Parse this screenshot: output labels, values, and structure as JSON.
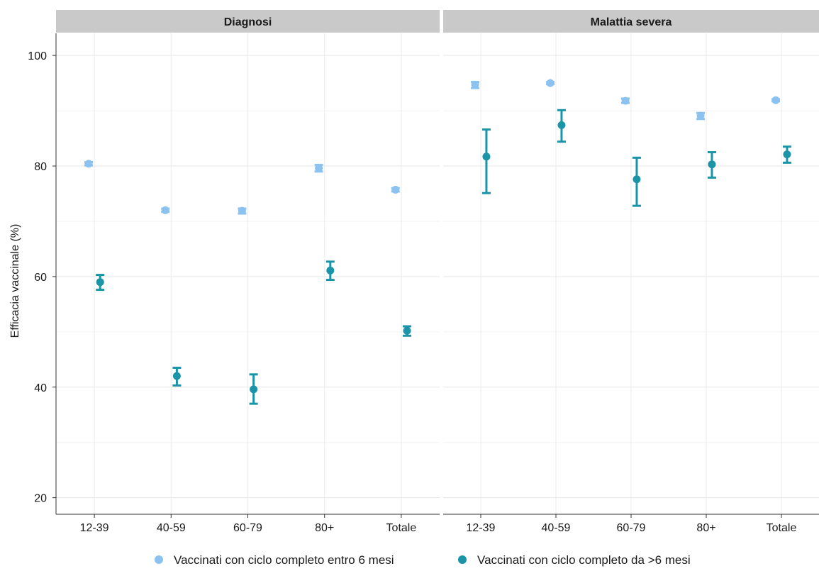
{
  "chart_data": {
    "type": "scatter",
    "subtype": "dot-with-errorbars",
    "ylabel": "Efficacia vaccinale (%)",
    "xlabel": "",
    "ylim": [
      17,
      104
    ],
    "yticks": [
      20,
      40,
      60,
      80,
      100
    ],
    "categories": [
      "12-39",
      "40-59",
      "60-79",
      "80+",
      "Totale"
    ],
    "grid": true,
    "legend_position": "bottom",
    "colors": {
      "recent": "#8cc2ef",
      "older": "#1b94a8"
    },
    "panels": [
      {
        "title": "Diagnosi",
        "series": [
          {
            "name": "Vaccinati con ciclo completo entro 6 mesi",
            "color": "#8cc2ef",
            "values": [
              80.4,
              72.0,
              71.9,
              79.6,
              75.7
            ],
            "lower": [
              80.1,
              71.7,
              71.4,
              79.0,
              75.4
            ],
            "upper": [
              80.7,
              72.3,
              72.3,
              80.2,
              76.0
            ]
          },
          {
            "name": "Vaccinati con ciclo completo da >6 mesi",
            "color": "#1b94a8",
            "values": [
              59.0,
              42.0,
              39.6,
              61.1,
              50.2
            ],
            "lower": [
              57.6,
              40.3,
              37.0,
              59.4,
              49.3
            ],
            "upper": [
              60.3,
              43.5,
              42.3,
              62.7,
              51.0
            ]
          }
        ]
      },
      {
        "title": "Malattia severa",
        "series": [
          {
            "name": "Vaccinati con ciclo completo entro 6 mesi",
            "color": "#8cc2ef",
            "values": [
              94.7,
              95.0,
              91.8,
              89.1,
              91.9
            ],
            "lower": [
              94.1,
              94.8,
              91.4,
              88.5,
              91.7
            ],
            "upper": [
              95.2,
              95.2,
              92.2,
              89.6,
              92.1
            ]
          },
          {
            "name": "Vaccinati con ciclo completo da >6 mesi",
            "color": "#1b94a8",
            "values": [
              81.7,
              87.4,
              77.6,
              80.3,
              82.1
            ],
            "lower": [
              75.1,
              84.4,
              72.8,
              77.9,
              80.6
            ],
            "upper": [
              86.6,
              90.1,
              81.5,
              82.5,
              83.5
            ]
          }
        ]
      }
    ],
    "legend": [
      {
        "label": "Vaccinati con ciclo completo entro 6 mesi",
        "color": "#8cc2ef"
      },
      {
        "label": "Vaccinati con ciclo completo da >6 mesi",
        "color": "#1b94a8"
      }
    ]
  }
}
